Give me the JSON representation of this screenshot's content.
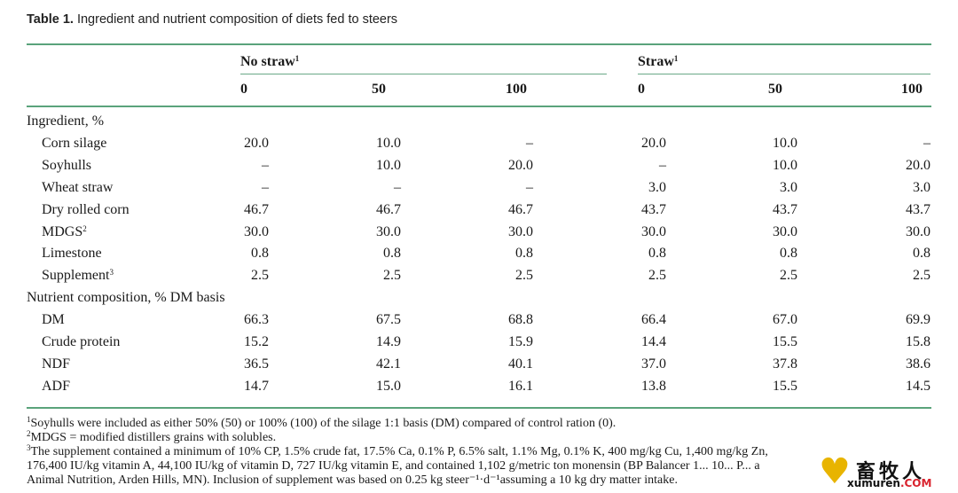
{
  "caption": {
    "label": "Table 1.",
    "text": "Ingredient and nutrient composition of diets fed to steers"
  },
  "header": {
    "group1": "No straw",
    "group1_sup": "1",
    "group2": "Straw",
    "group2_sup": "1",
    "levels": [
      "0",
      "50",
      "100",
      "0",
      "50",
      "100"
    ]
  },
  "sections": [
    {
      "title": "Ingredient, %",
      "rows": [
        {
          "label": "Corn silage",
          "sup": "",
          "values": [
            "20.0",
            "10.0",
            "–",
            "20.0",
            "10.0",
            "–"
          ]
        },
        {
          "label": "Soyhulls",
          "sup": "",
          "values": [
            "–",
            "10.0",
            "20.0",
            "–",
            "10.0",
            "20.0"
          ]
        },
        {
          "label": "Wheat straw",
          "sup": "",
          "values": [
            "–",
            "–",
            "–",
            "3.0",
            "3.0",
            "3.0"
          ]
        },
        {
          "label": "Dry rolled corn",
          "sup": "",
          "values": [
            "46.7",
            "46.7",
            "46.7",
            "43.7",
            "43.7",
            "43.7"
          ]
        },
        {
          "label": "MDGS",
          "sup": "2",
          "values": [
            "30.0",
            "30.0",
            "30.0",
            "30.0",
            "30.0",
            "30.0"
          ]
        },
        {
          "label": "Limestone",
          "sup": "",
          "values": [
            "0.8",
            "0.8",
            "0.8",
            "0.8",
            "0.8",
            "0.8"
          ]
        },
        {
          "label": "Supplement",
          "sup": "3",
          "values": [
            "2.5",
            "2.5",
            "2.5",
            "2.5",
            "2.5",
            "2.5"
          ]
        }
      ]
    },
    {
      "title": "Nutrient composition, % DM basis",
      "rows": [
        {
          "label": "DM",
          "sup": "",
          "values": [
            "66.3",
            "67.5",
            "68.8",
            "66.4",
            "67.0",
            "69.9"
          ]
        },
        {
          "label": "Crude protein",
          "sup": "",
          "values": [
            "15.2",
            "14.9",
            "15.9",
            "14.4",
            "15.5",
            "15.8"
          ]
        },
        {
          "label": "NDF",
          "sup": "",
          "values": [
            "36.5",
            "42.1",
            "40.1",
            "37.0",
            "37.8",
            "38.6"
          ]
        },
        {
          "label": "ADF",
          "sup": "",
          "values": [
            "14.7",
            "15.0",
            "16.1",
            "13.8",
            "15.5",
            "14.5"
          ]
        }
      ]
    }
  ],
  "footnotes": [
    {
      "mark": "1",
      "text": "Soyhulls were included as either 50% (50) or 100% (100) of the silage 1:1 basis (DM) compared of control ration (0)."
    },
    {
      "mark": "2",
      "text": "MDGS = modified distillers grains with solubles."
    },
    {
      "mark": "3",
      "text": "The supplement contained a minimum of 10% CP, 1.5% crude fat, 17.5% Ca, 0.1% P, 6.5% salt, 1.1% Mg, 0.1% K, 400 mg/kg Cu, 1,400 mg/kg Zn,"
    },
    {
      "mark": "",
      "text": "176,400 IU/kg vitamin A, 44,100 IU/kg of vitamin D, 727 IU/kg vitamin E, and contained 1,102 g/metric ton monensin (BP Balancer 1... 10... P... a"
    },
    {
      "mark": "",
      "text": "Animal Nutrition, Arden Hills, MN). Inclusion of supplement was based on 0.25 kg steer⁻¹·d⁻¹assuming a 10 kg dry matter intake."
    }
  ],
  "watermark": {
    "cn": "畜牧人",
    "en": "xumuren",
    "en_suffix": ".COM",
    "heart_icon": "heart-icon",
    "heart_color": "#e8b400",
    "suffix_color": "#d9232e"
  }
}
